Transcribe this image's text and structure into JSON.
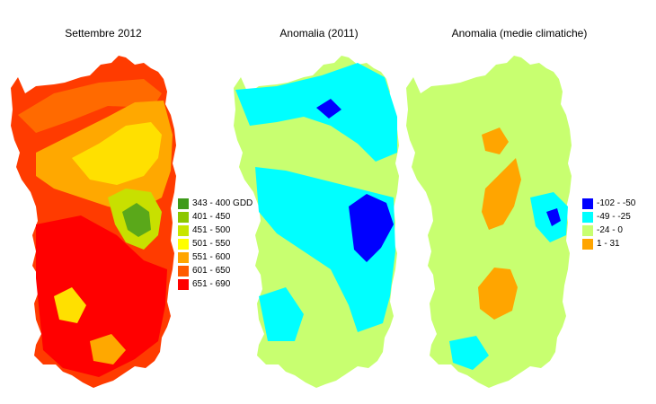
{
  "panels": [
    {
      "title": "Settembre 2012",
      "fill": "#ff3b00",
      "patches": [
        {
          "color": "#ff6a00"
        },
        {
          "color": "#ffa800"
        },
        {
          "color": "#ffe000"
        },
        {
          "color": "#c8e000"
        },
        {
          "color": "#5aa81a"
        },
        {
          "color": "#ff0000"
        }
      ]
    },
    {
      "title": "Anomalia (2011)",
      "fill": "#c8ff70",
      "patches": [
        {
          "color": "#00ffff"
        },
        {
          "color": "#00ffff"
        },
        {
          "color": "#0000ff"
        },
        {
          "color": "#0000ff"
        }
      ]
    },
    {
      "title": "Anomalia (medie climatiche)",
      "fill": "#c8ff70",
      "patches": [
        {
          "color": "#ffa500"
        },
        {
          "color": "#ffa500"
        },
        {
          "color": "#ffa500"
        },
        {
          "color": "#00ffff"
        },
        {
          "color": "#0000ff"
        }
      ]
    }
  ],
  "legend_gdd": [
    {
      "label": "343 - 400 GDD",
      "color": "#3d9a1a"
    },
    {
      "label": "401 - 450",
      "color": "#8cc700"
    },
    {
      "label": "451 - 500",
      "color": "#c8e600"
    },
    {
      "label": "501 - 550",
      "color": "#ffff00"
    },
    {
      "label": "551 - 600",
      "color": "#ffa500"
    },
    {
      "label": "601 - 650",
      "color": "#ff5a00"
    },
    {
      "label": "651 - 690",
      "color": "#ff0000"
    }
  ],
  "legend_anomaly": [
    {
      "label": "-102 - -50",
      "color": "#0000ff"
    },
    {
      "label": "-49 - -25",
      "color": "#00ffff"
    },
    {
      "label": "-24 - 0",
      "color": "#c8ff70"
    },
    {
      "label": "1 - 31",
      "color": "#ffa500"
    }
  ]
}
